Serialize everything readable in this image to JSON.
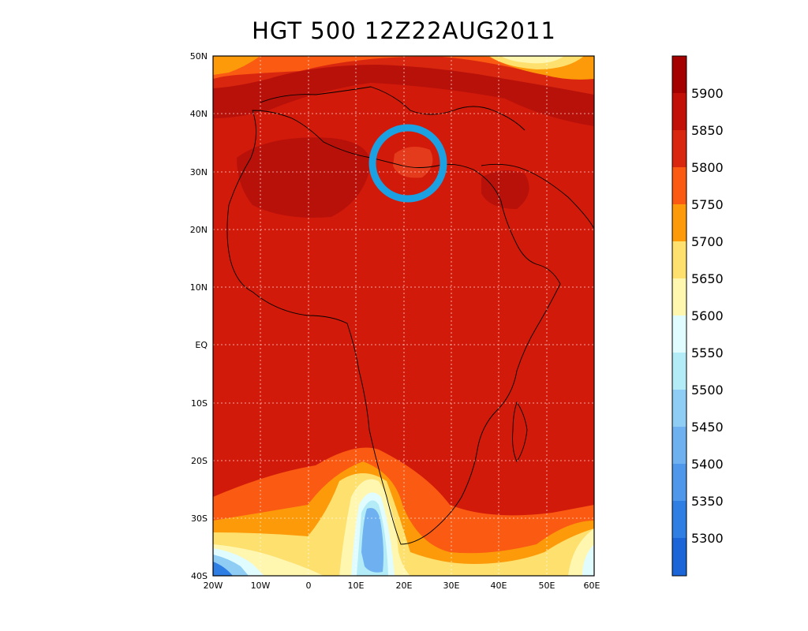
{
  "title": "HGT 500 12Z22AUG2011",
  "colors": {
    "background": "#d21a0a",
    "marker": "#1ba0e2"
  },
  "map": {
    "lon_range": [
      -20,
      60
    ],
    "lat_range": [
      -40,
      50
    ],
    "lat_ticks": [
      "50N",
      "40N",
      "30N",
      "20N",
      "10N",
      "EQ",
      "10S",
      "20S",
      "30S",
      "40S"
    ],
    "lon_ticks": [
      "20W",
      "10W",
      "0",
      "10E",
      "20E",
      "30E",
      "40E",
      "50E",
      "60E"
    ],
    "grid": true,
    "highlight_marker": {
      "shape": "circle",
      "lon": 20.5,
      "lat": 31,
      "color": "#1ba0e2"
    }
  },
  "colorbar": {
    "labels": [
      "5900",
      "5850",
      "5800",
      "5750",
      "5700",
      "5650",
      "5600",
      "5550",
      "5500",
      "5450",
      "5400",
      "5350",
      "5300"
    ],
    "colors": [
      "#a50000",
      "#c20f07",
      "#d9260f",
      "#fa5a12",
      "#fc9a0a",
      "#fde06e",
      "#fff6b0",
      "#e1fcff",
      "#b3ebf7",
      "#8fcdf5",
      "#6fb0f0",
      "#4e97ea",
      "#2f7ee3",
      "#1b65d8"
    ]
  }
}
